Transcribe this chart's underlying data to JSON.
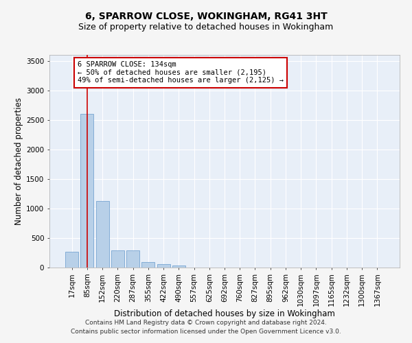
{
  "title1": "6, SPARROW CLOSE, WOKINGHAM, RG41 3HT",
  "title2": "Size of property relative to detached houses in Wokingham",
  "xlabel": "Distribution of detached houses by size in Wokingham",
  "ylabel": "Number of detached properties",
  "bar_color": "#b8d0e8",
  "bar_edge_color": "#6699cc",
  "background_color": "#e8eff8",
  "grid_color": "#ffffff",
  "fig_background": "#f5f5f5",
  "categories": [
    "17sqm",
    "85sqm",
    "152sqm",
    "220sqm",
    "287sqm",
    "355sqm",
    "422sqm",
    "490sqm",
    "557sqm",
    "625sqm",
    "692sqm",
    "760sqm",
    "827sqm",
    "895sqm",
    "962sqm",
    "1030sqm",
    "1097sqm",
    "1165sqm",
    "1232sqm",
    "1300sqm",
    "1367sqm"
  ],
  "values": [
    270,
    2600,
    1130,
    285,
    285,
    90,
    55,
    30,
    0,
    0,
    0,
    0,
    0,
    0,
    0,
    0,
    0,
    0,
    0,
    0,
    0
  ],
  "ylim": [
    0,
    3600
  ],
  "yticks": [
    0,
    500,
    1000,
    1500,
    2000,
    2500,
    3000,
    3500
  ],
  "vline_x": 1.0,
  "vline_color": "#cc0000",
  "annotation_line1": "6 SPARROW CLOSE: 134sqm",
  "annotation_line2": "← 50% of detached houses are smaller (2,195)",
  "annotation_line3": "49% of semi-detached houses are larger (2,125) →",
  "annotation_box_color": "#ffffff",
  "annotation_border_color": "#cc0000",
  "footer_line1": "Contains HM Land Registry data © Crown copyright and database right 2024.",
  "footer_line2": "Contains public sector information licensed under the Open Government Licence v3.0.",
  "title1_fontsize": 10,
  "title2_fontsize": 9,
  "xlabel_fontsize": 8.5,
  "ylabel_fontsize": 8.5,
  "tick_fontsize": 7.5,
  "annotation_fontsize": 7.5,
  "footer_fontsize": 6.5
}
